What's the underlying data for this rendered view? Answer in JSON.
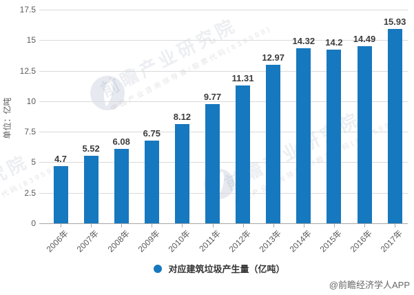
{
  "chart_data": {
    "type": "bar",
    "categories": [
      "2006年",
      "2007年",
      "2008年",
      "2009年",
      "2010年",
      "2011年",
      "2012年",
      "2013年",
      "2014年",
      "2015年",
      "2016年",
      "2017年"
    ],
    "values": [
      4.7,
      5.52,
      6.08,
      6.75,
      8.12,
      9.77,
      11.31,
      12.97,
      14.32,
      14.2,
      14.49,
      15.93
    ],
    "value_labels": [
      "4.7",
      "5.52",
      "6.08",
      "6.75",
      "8.12",
      "9.77",
      "11.31",
      "12.97",
      "14.32",
      "14.2",
      "14.49",
      "15.93"
    ],
    "ylabel": "单位：亿吨",
    "ylim": [
      0,
      17.5
    ],
    "yticks": [
      "0",
      "2.5",
      "5",
      "7.5",
      "10",
      "12.5",
      "15",
      "17.5"
    ],
    "grid": true,
    "legend_position": "bottom",
    "series_name": "对应建筑垃圾产生量（亿吨）",
    "bar_color": "#1678be"
  },
  "legend": {
    "label": "对应建筑垃圾产生量（亿吨）"
  },
  "watermark": {
    "logo": "qianzhan-bird-logo",
    "text_large": "前瞻产业研究院",
    "text_small": "中国产业咨询领导者/股票代码(839599)"
  },
  "credit": "@前瞻经济学人APP",
  "colors": {
    "bar": "#1678be",
    "grid": "#d9d9d9",
    "axis": "#a6a6a6",
    "tick_label": "#595959",
    "value_label": "#3c3c3c",
    "credit": "#666666"
  }
}
